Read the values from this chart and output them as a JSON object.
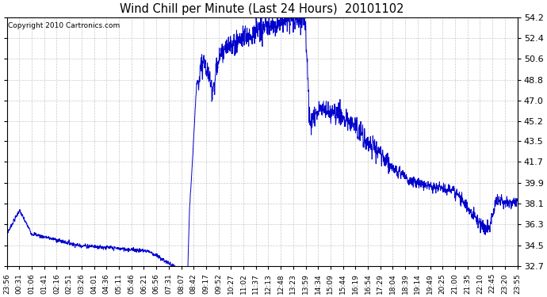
{
  "title": "Wind Chill per Minute (Last 24 Hours)  20101102",
  "copyright": "Copyright 2010 Cartronics.com",
  "line_color": "#0000CC",
  "background_color": "#ffffff",
  "grid_color": "#aaaaaa",
  "ylim": [
    32.7,
    54.2
  ],
  "yticks": [
    32.7,
    34.5,
    36.3,
    38.1,
    39.9,
    41.7,
    43.5,
    45.2,
    47.0,
    48.8,
    50.6,
    52.4,
    54.2
  ],
  "xtick_labels": [
    "23:56",
    "00:31",
    "01:06",
    "01:41",
    "02:16",
    "02:51",
    "03:26",
    "04:01",
    "04:36",
    "05:11",
    "05:46",
    "06:21",
    "06:56",
    "07:31",
    "08:07",
    "08:42",
    "09:17",
    "09:52",
    "10:27",
    "11:02",
    "11:37",
    "12:13",
    "12:48",
    "13:23",
    "13:59",
    "14:34",
    "15:09",
    "15:44",
    "16:19",
    "16:54",
    "17:29",
    "18:04",
    "18:39",
    "19:14",
    "19:49",
    "20:25",
    "21:00",
    "21:35",
    "22:10",
    "22:45",
    "23:20",
    "23:55"
  ]
}
